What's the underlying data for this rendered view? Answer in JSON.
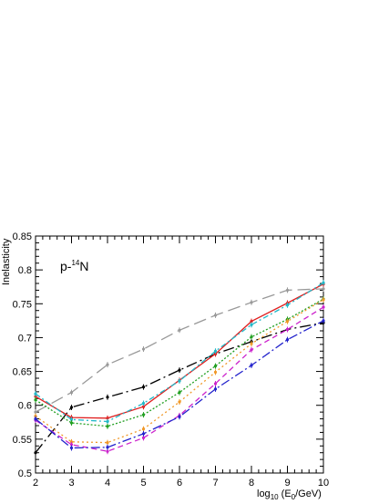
{
  "chart_data": {
    "type": "line",
    "title": "",
    "annotation": {
      "prefix": "p-",
      "superscript": "14",
      "suffix": "N"
    },
    "ylabel": "Inelasticity",
    "xlabel": {
      "base": "log",
      "sub1": "10",
      "mid": " (E",
      "sub2": "0",
      "end": "/GeV)"
    },
    "xlim": [
      2,
      10
    ],
    "ylim": [
      0.5,
      0.85
    ],
    "x_ticks": [
      2,
      3,
      4,
      5,
      6,
      7,
      8,
      9,
      10
    ],
    "y_ticks": [
      "0.5",
      "0.55",
      "0.6",
      "0.65",
      "0.7",
      "0.75",
      "0.8",
      "0.85"
    ],
    "grid": false,
    "x": [
      2,
      3,
      4,
      5,
      6,
      7,
      8,
      9,
      10
    ],
    "series": [
      {
        "color": "#999999",
        "dash": "14,6",
        "values": [
          0.59,
          0.619,
          0.66,
          0.683,
          0.711,
          0.733,
          0.752,
          0.77,
          0.772
        ]
      },
      {
        "color": "#000000",
        "dash": "12,4,2,4",
        "values": [
          0.53,
          0.597,
          0.612,
          0.627,
          0.652,
          0.676,
          0.694,
          0.712,
          0.722
        ]
      },
      {
        "color": "#e02020",
        "dash": "",
        "values": [
          0.613,
          0.582,
          0.581,
          0.598,
          0.637,
          0.676,
          0.724,
          0.751,
          0.779
        ]
      },
      {
        "color": "#22b8c8",
        "dash": "6,3,2,3",
        "values": [
          0.617,
          0.579,
          0.576,
          0.603,
          0.636,
          0.68,
          0.719,
          0.748,
          0.781
        ]
      },
      {
        "color": "#22a022",
        "dash": "2,2",
        "values": [
          0.608,
          0.574,
          0.569,
          0.586,
          0.619,
          0.658,
          0.701,
          0.727,
          0.757
        ]
      },
      {
        "color": "#f09828",
        "dash": "2,3",
        "values": [
          0.584,
          0.546,
          0.545,
          0.565,
          0.605,
          0.649,
          0.691,
          0.724,
          0.756
        ]
      },
      {
        "color": "#cc22cc",
        "dash": "6,4",
        "values": [
          0.578,
          0.542,
          0.532,
          0.552,
          0.585,
          0.632,
          0.682,
          0.712,
          0.745
        ]
      },
      {
        "color": "#2222cc",
        "dash": "10,3,2,3",
        "values": [
          0.58,
          0.537,
          0.538,
          0.558,
          0.583,
          0.624,
          0.659,
          0.697,
          0.725
        ]
      }
    ]
  }
}
